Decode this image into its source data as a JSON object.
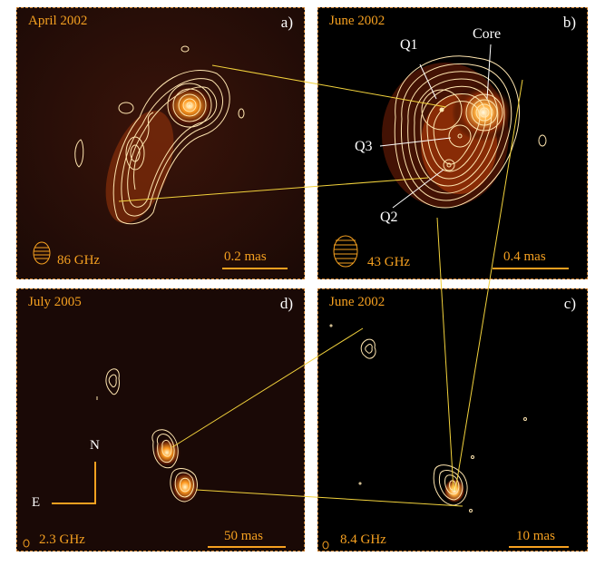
{
  "panels": {
    "a": {
      "date": "April 2002",
      "label": "a)",
      "freq": "86 GHz",
      "scale": "0.2 mas"
    },
    "b": {
      "date": "June 2002",
      "label": "b)",
      "freq": "43 GHz",
      "scale": "0.4 mas",
      "components": {
        "q1": "Q1",
        "core": "Core",
        "q3": "Q3",
        "q2": "Q2"
      }
    },
    "c": {
      "date": "June 2002",
      "label": "c)",
      "freq": "8.4 GHz",
      "scale": "10 mas"
    },
    "d": {
      "date": "July 2005",
      "label": "d)",
      "freq": "2.3 GHz",
      "scale": "50 mas"
    }
  },
  "compass": {
    "north": "N",
    "east": "E"
  },
  "colors": {
    "accent": "#f5a020",
    "contour": "#ffe6b0",
    "connector": "#f2d23c",
    "background": "#000000"
  }
}
